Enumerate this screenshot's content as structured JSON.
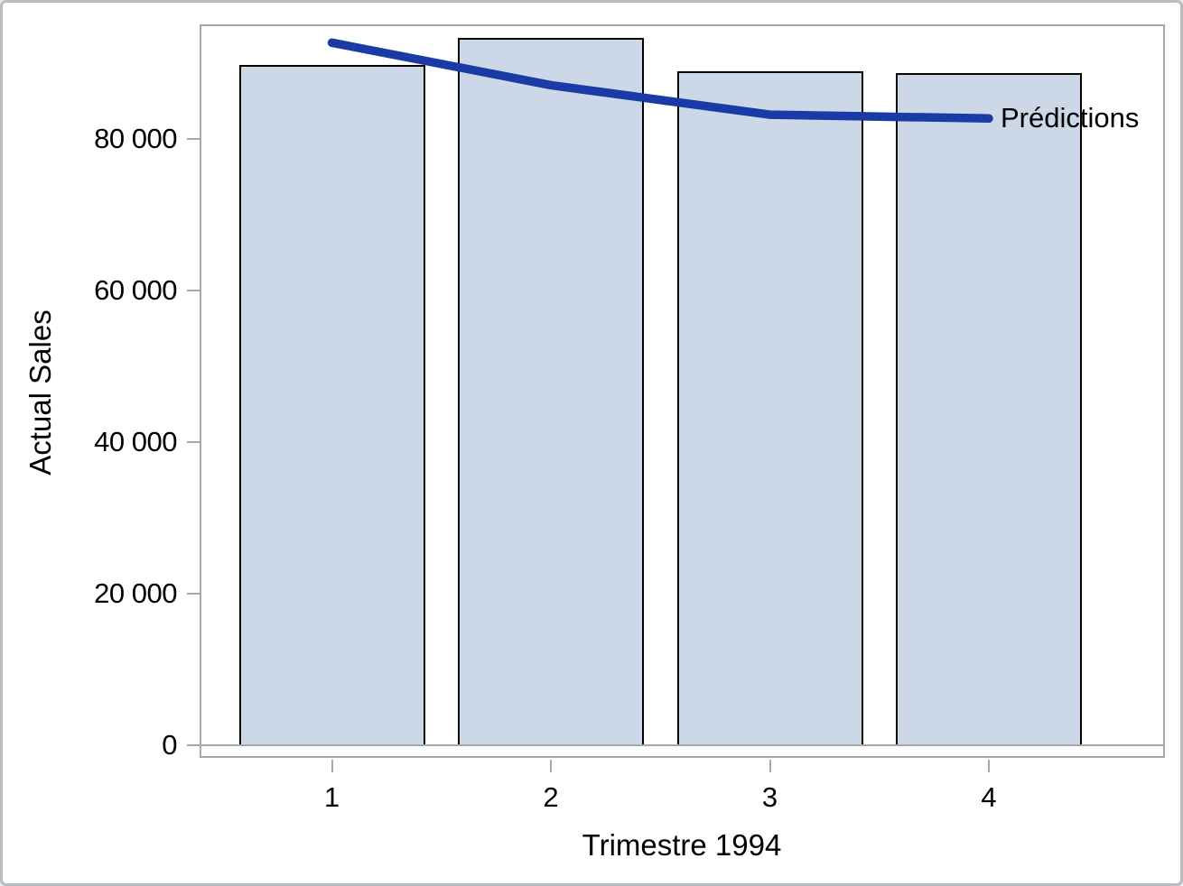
{
  "chart_data": {
    "type": "bar",
    "title": "",
    "xlabel": "Trimestre 1994",
    "ylabel": "Actual Sales",
    "categories": [
      "1",
      "2",
      "3",
      "4"
    ],
    "series": [
      {
        "name": "Actual Sales",
        "type": "bar",
        "values": [
          89800,
          93300,
          88900,
          88700
        ]
      },
      {
        "name": "Prédictions",
        "type": "line",
        "values": [
          92700,
          87100,
          83200,
          82700
        ]
      }
    ],
    "line_label": "Prédictions",
    "y_ticks": [
      {
        "value": 0,
        "label": "0"
      },
      {
        "value": 20000,
        "label": "20 000"
      },
      {
        "value": 40000,
        "label": "40 000"
      },
      {
        "value": 60000,
        "label": "60 000"
      },
      {
        "value": 80000,
        "label": "80 000"
      }
    ],
    "ylim": [
      0,
      95000
    ],
    "grid": false,
    "legend_position": "label-at-line-end"
  },
  "colors": {
    "background": "#FFFFFF",
    "canvas_border": "#B9BCC1",
    "axis": "#A6A8AB",
    "text": "#000000",
    "bar_fill": "#CCD7E7",
    "bar_border": "#000000",
    "line": "#1A3AA5"
  }
}
